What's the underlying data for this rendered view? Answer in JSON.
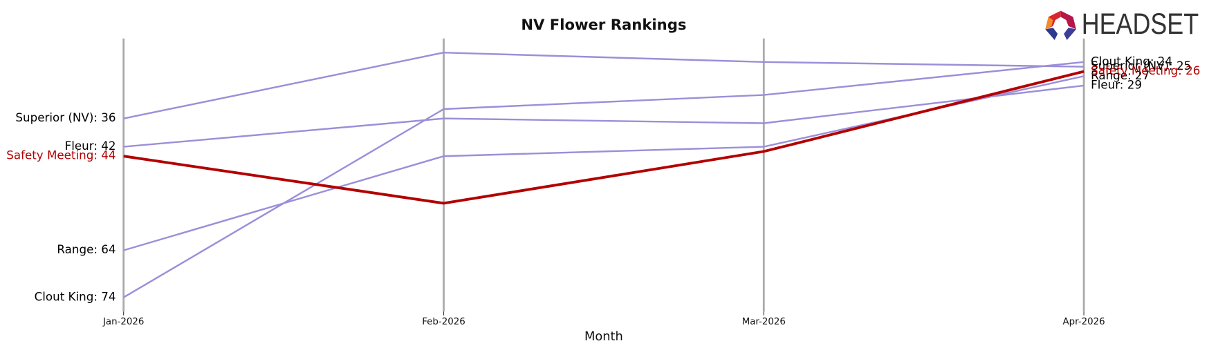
{
  "chart_data": {
    "type": "bump",
    "title": "NV Flower Rankings",
    "x_label": "Month",
    "logo": "HEADSET",
    "categories": [
      "Jan-2026",
      "Feb-2026",
      "Mar-2026",
      "Apr-2026"
    ],
    "ylim": [
      19,
      77
    ],
    "y_inverted": true,
    "grid": true,
    "series": [
      {
        "name": "Superior (NV)",
        "color": "#9b8fd9",
        "values": [
          36,
          22,
          24,
          25
        ],
        "value_labels": [
          "Superior (NV): 36",
          null,
          null,
          "Superior (NV): 25"
        ]
      },
      {
        "name": "Clout King",
        "color": "#9b8fd9",
        "values": [
          74,
          34,
          31,
          24
        ],
        "value_labels": [
          "Clout King: 74",
          null,
          null,
          "Clout King: 24"
        ]
      },
      {
        "name": "Fleur",
        "color": "#9b8fd9",
        "values": [
          42,
          36,
          37,
          29
        ],
        "value_labels": [
          "Fleur: 42",
          null,
          null,
          "Fleur: 29"
        ]
      },
      {
        "name": "Range",
        "color": "#9b8fd9",
        "values": [
          64,
          44,
          42,
          27
        ],
        "value_labels": [
          "Range: 64",
          null,
          null,
          "Range: 27"
        ]
      },
      {
        "name": "Safety Meeting",
        "color": "#b30000",
        "highlight": true,
        "values": [
          44,
          54,
          43,
          26
        ],
        "value_labels": [
          "Safety Meeting: 44",
          null,
          null,
          "Safety Meeting: 26"
        ]
      }
    ]
  }
}
